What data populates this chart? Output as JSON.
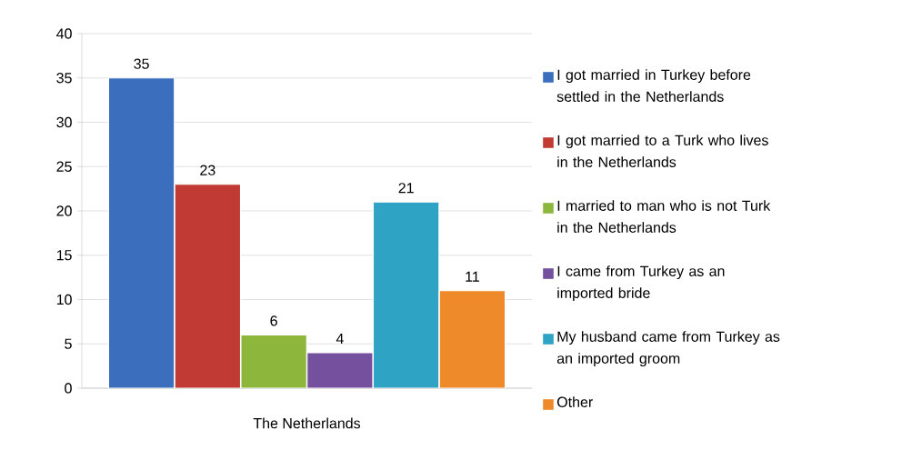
{
  "chart_data": {
    "type": "bar",
    "categories": [
      "The Netherlands"
    ],
    "series": [
      {
        "name": "I got married in Turkey before settled in the Netherlands",
        "color": "#3b6fbe",
        "values": [
          35
        ]
      },
      {
        "name": "I got married to a Turk who lives in the Netherlands",
        "color": "#c23a34",
        "values": [
          23
        ]
      },
      {
        "name": "I married to man who is not Turk in the Netherlands",
        "color": "#8db63c",
        "values": [
          6
        ]
      },
      {
        "name": "I came from Turkey as an imported bride",
        "color": "#74509e",
        "values": [
          4
        ]
      },
      {
        "name": "My husband came from Turkey as an imported groom",
        "color": "#2fa3c3",
        "values": [
          21
        ]
      },
      {
        "name": "Other",
        "color": "#ee8a2a",
        "values": [
          11
        ]
      }
    ],
    "ylim": [
      0,
      40
    ],
    "yticks": [
      0,
      5,
      10,
      15,
      20,
      25,
      30,
      35,
      40
    ],
    "grid": "y",
    "legend": "right",
    "data_labels": true
  }
}
